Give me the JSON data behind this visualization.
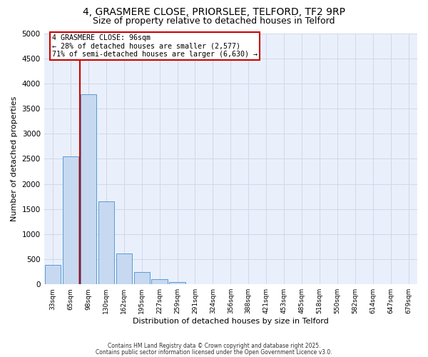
{
  "title_line1": "4, GRASMERE CLOSE, PRIORSLEE, TELFORD, TF2 9RP",
  "title_line2": "Size of property relative to detached houses in Telford",
  "xlabel": "Distribution of detached houses by size in Telford",
  "ylabel": "Number of detached properties",
  "bar_values": [
    380,
    2550,
    3780,
    1650,
    620,
    250,
    100,
    50,
    0,
    0,
    0,
    0,
    0,
    0,
    0,
    0,
    0,
    0,
    0,
    0,
    0
  ],
  "bar_labels": [
    "33sqm",
    "65sqm",
    "98sqm",
    "130sqm",
    "162sqm",
    "195sqm",
    "227sqm",
    "259sqm",
    "291sqm",
    "324sqm",
    "356sqm",
    "388sqm",
    "421sqm",
    "453sqm",
    "485sqm",
    "518sqm",
    "550sqm",
    "582sqm",
    "614sqm",
    "647sqm",
    "679sqm"
  ],
  "bar_color": "#c6d9f0",
  "bar_edge_color": "#5b9bd5",
  "grid_color": "#d0d8e8",
  "background_color": "#eaf0fb",
  "vline_color": "#cc0000",
  "annotation_text": "4 GRASMERE CLOSE: 96sqm\n← 28% of detached houses are smaller (2,577)\n71% of semi-detached houses are larger (6,630) →",
  "annotation_box_color": "#ffffff",
  "annotation_box_edge": "#cc0000",
  "ylim": [
    0,
    5000
  ],
  "yticks": [
    0,
    500,
    1000,
    1500,
    2000,
    2500,
    3000,
    3500,
    4000,
    4500,
    5000
  ],
  "footer_line1": "Contains HM Land Registry data © Crown copyright and database right 2025.",
  "footer_line2": "Contains public sector information licensed under the Open Government Licence v3.0.",
  "title_fontsize": 10,
  "subtitle_fontsize": 9
}
